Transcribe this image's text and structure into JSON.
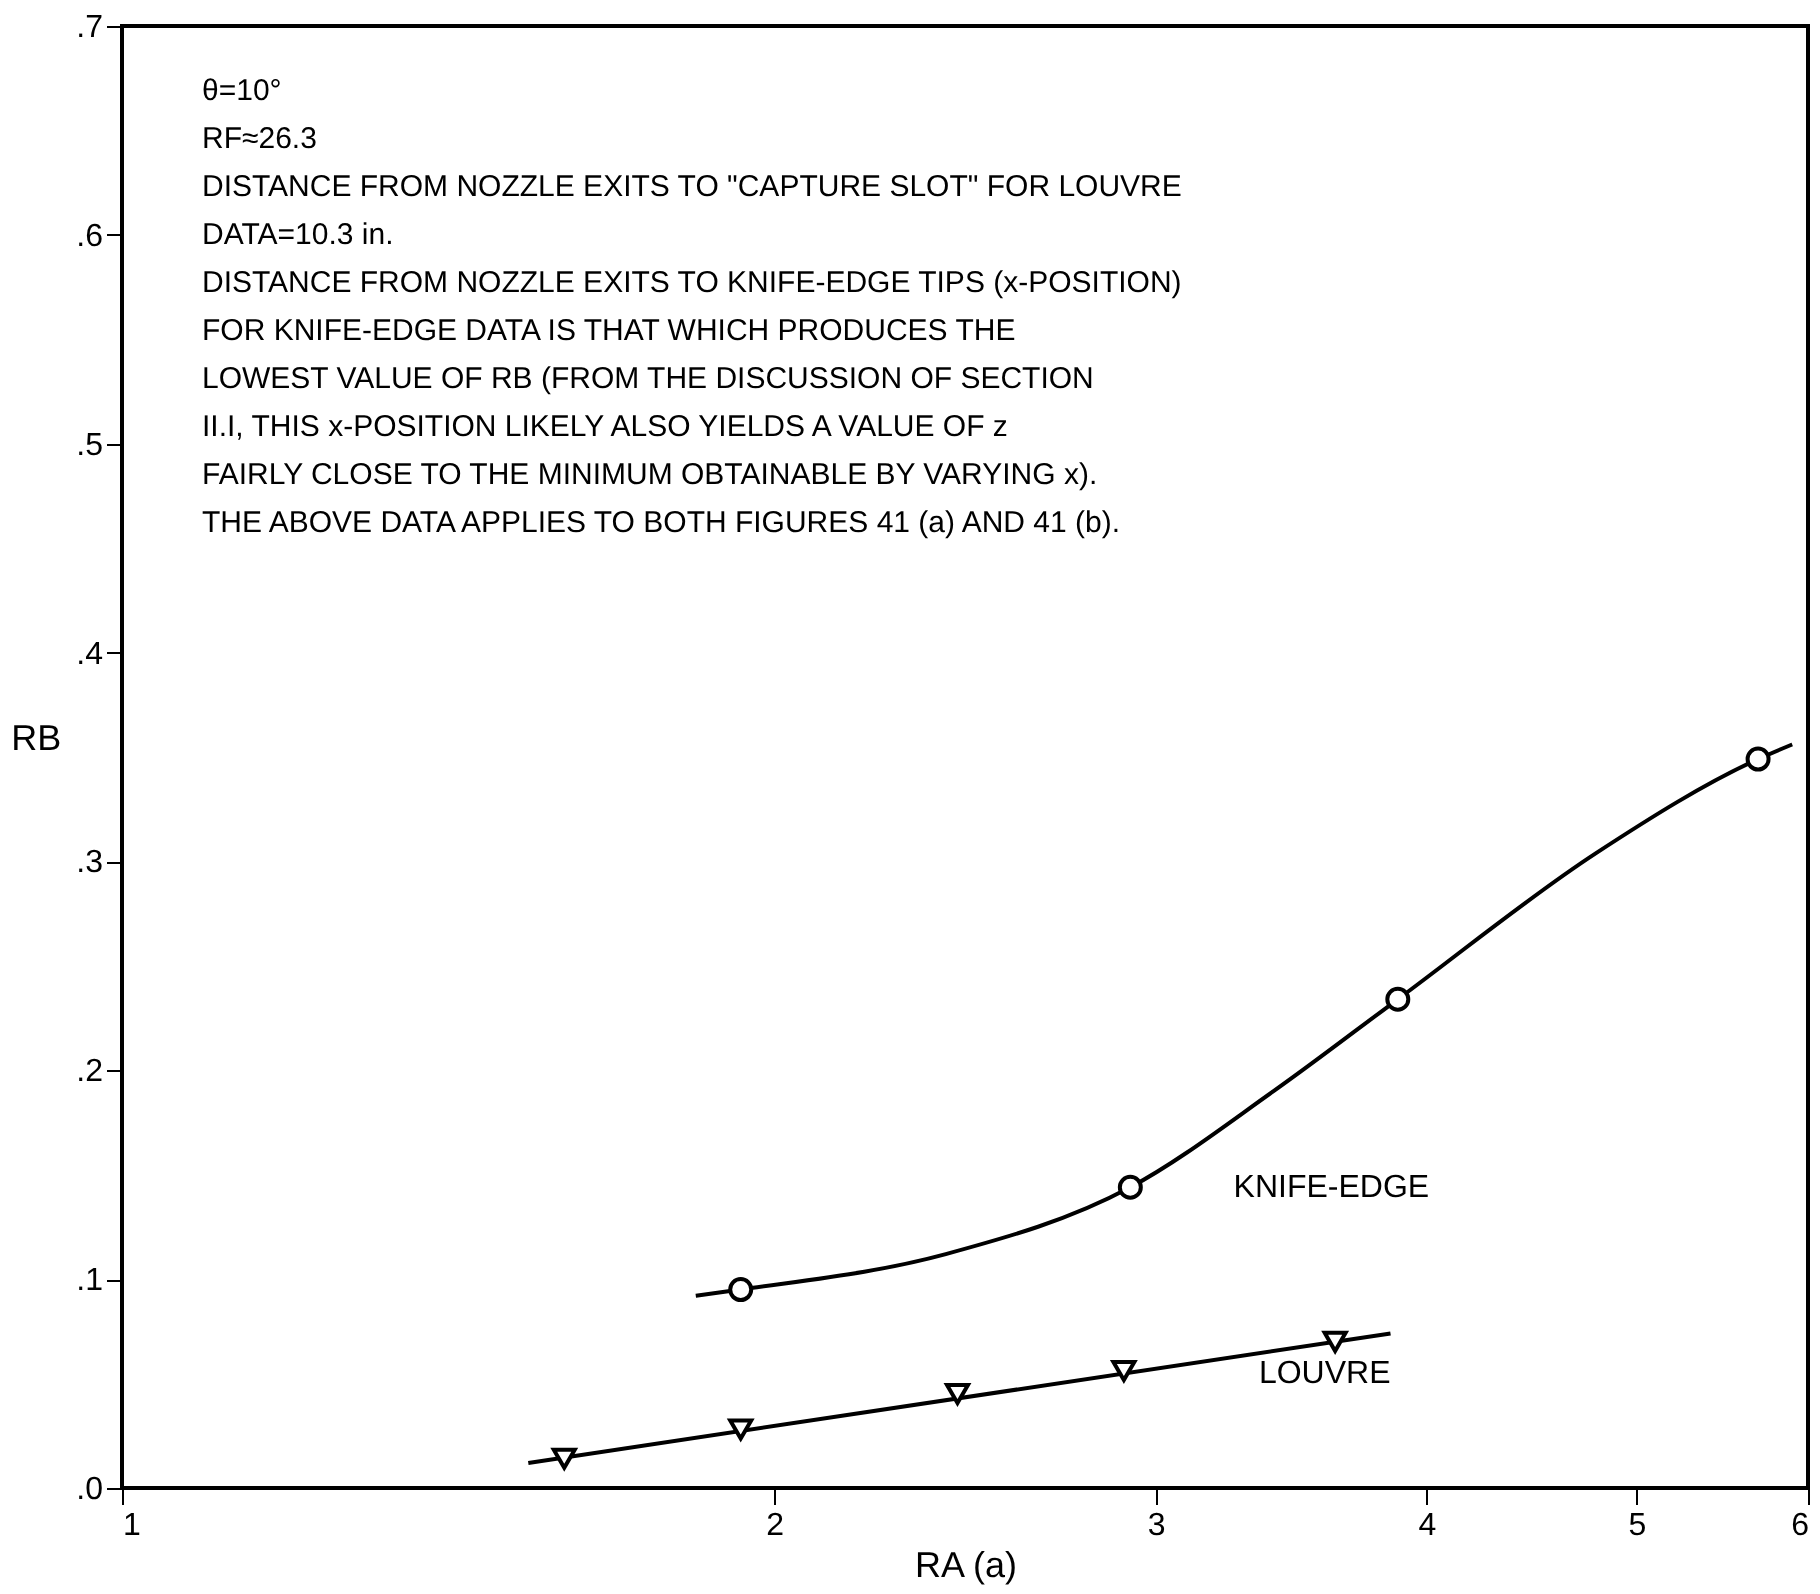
{
  "chart_data": {
    "type": "scatter",
    "xlabel": "RA (a)",
    "ylabel": "RB",
    "log": "x",
    "grid": false,
    "xlim": [
      1,
      6
    ],
    "xticks": [
      1,
      2,
      3,
      4,
      5,
      6
    ],
    "ylim": [
      0,
      0.7
    ],
    "yticks": [
      {
        "value": 0,
        "label": ".0"
      },
      {
        "value": 0.1,
        "label": ".1"
      },
      {
        "value": 0.2,
        "label": ".2"
      },
      {
        "value": 0.3,
        "label": ".3"
      },
      {
        "value": 0.4,
        "label": ".4"
      },
      {
        "value": 0.5,
        "label": ".5"
      },
      {
        "value": 0.6,
        "label": ".6"
      },
      {
        "value": 0.7,
        "label": ".7"
      }
    ],
    "series": [
      {
        "type": "line",
        "name": "KNIFE-EDGE",
        "color": "#000000",
        "marker": "none",
        "x": [
          1.84,
          1.93,
          2.4,
          2.92,
          3.4,
          3.88,
          4.79,
          5.69,
          5.9
        ],
        "values": [
          0.092,
          0.095,
          0.112,
          0.144,
          0.19,
          0.234,
          0.304,
          0.349,
          0.356
        ]
      },
      {
        "type": "line",
        "name": "LOUVRE",
        "color": "#000000",
        "marker": "none",
        "x": [
          1.54,
          3.85
        ],
        "values": [
          0.012,
          0.074
        ]
      },
      {
        "type": "scatter",
        "color": "#000000",
        "marker": "circle",
        "x": [
          1.93,
          2.92,
          3.88,
          5.69
        ],
        "values": [
          0.095,
          0.144,
          0.234,
          0.349
        ]
      },
      {
        "type": "scatter",
        "color": "#000000",
        "marker": "triangle",
        "x": [
          1.6,
          1.93,
          2.43,
          2.9,
          3.63
        ],
        "values": [
          0.014,
          0.028,
          0.045,
          0.056,
          0.07
        ]
      }
    ],
    "annotations": [
      "θ=10°",
      "RF≈26.3",
      "DISTANCE FROM NOZZLE EXITS TO \"CAPTURE SLOT\" FOR LOUVRE",
      "DATA=10.3 in.",
      "DISTANCE FROM NOZZLE EXITS TO KNIFE-EDGE TIPS (x-POSITION)",
      "FOR KNIFE-EDGE DATA IS THAT WHICH PRODUCES THE",
      "LOWEST VALUE OF RB (FROM THE DISCUSSION OF SECTION",
      "II.I, THIS x-POSITION LIKELY ALSO YIELDS A VALUE OF z",
      "FAIRLY CLOSE TO THE MINIMUM OBTAINABLE BY VARYING x).",
      "THE ABOVE DATA APPLIES TO BOTH FIGURES 41 (a) AND 41 (b)."
    ]
  }
}
